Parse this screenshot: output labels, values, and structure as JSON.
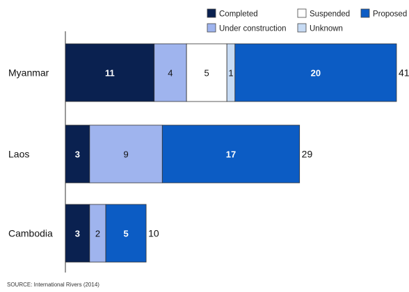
{
  "chart_data": {
    "type": "bar",
    "orientation": "horizontal",
    "stacked": true,
    "categories": [
      "Myanmar",
      "Laos",
      "Cambodia"
    ],
    "series": [
      {
        "name": "Completed",
        "color": "#0a2150",
        "label_color": "#ffffff",
        "values": [
          11,
          3,
          3
        ]
      },
      {
        "name": "Under construction",
        "color": "#9fb4ee",
        "label_color": "#111111",
        "values": [
          4,
          9,
          2
        ]
      },
      {
        "name": "Suspended",
        "color": "#ffffff",
        "label_color": "#111111",
        "values": [
          5,
          0,
          0
        ]
      },
      {
        "name": "Unknown",
        "color": "#c7dbf4",
        "label_color": "#111111",
        "values": [
          1,
          0,
          0
        ]
      },
      {
        "name": "Proposed",
        "color": "#0c5cc4",
        "label_color": "#ffffff",
        "values": [
          20,
          17,
          5
        ]
      }
    ],
    "totals": [
      41,
      29,
      10
    ],
    "segment_labels": [
      [
        "11",
        "4",
        "5",
        "1",
        "20"
      ],
      [
        "3",
        "9",
        "",
        "",
        "17"
      ],
      [
        "3",
        "2",
        "",
        "",
        "5"
      ]
    ],
    "xlim": [
      0,
      41
    ],
    "grid": false,
    "legend_position": "top-right",
    "legend_layout": [
      [
        "Completed",
        "Suspended",
        "Proposed"
      ],
      [
        "Under construction",
        "Unknown"
      ]
    ]
  },
  "source_note": "SOURCE: International Rivers (2014)"
}
